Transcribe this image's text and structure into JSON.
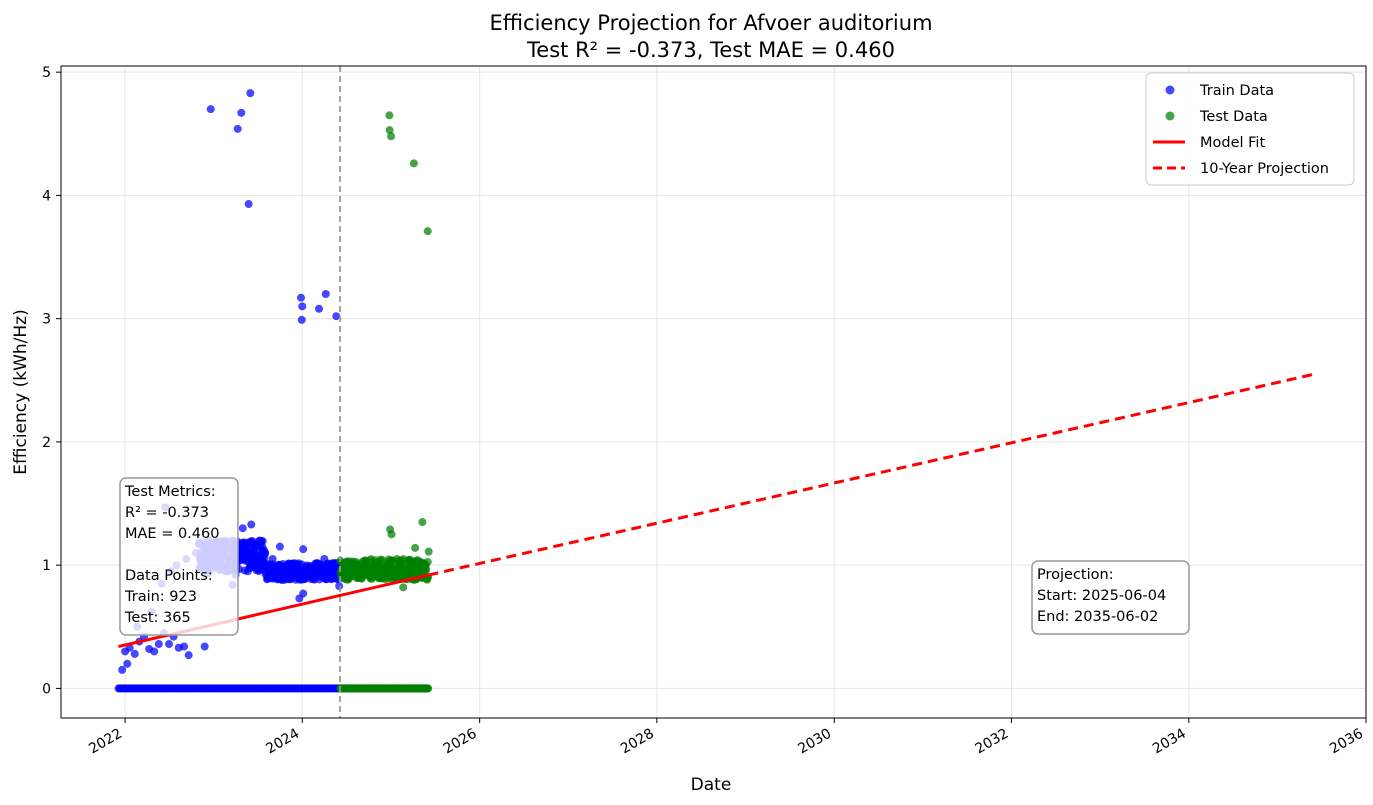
{
  "chart_data": {
    "type": "scatter",
    "title": "Efficiency Projection for Afvoer auditorium",
    "subtitle": "Test R² = -0.373, Test MAE = 0.460",
    "xlabel": "Date",
    "ylabel": "Efficiency (kWh/Hz)",
    "xlim": [
      "2021-04-12",
      "2036-01-01"
    ],
    "ylim": [
      -0.24,
      5.05
    ],
    "x_ticks": [
      "2022",
      "2024",
      "2026",
      "2028",
      "2030",
      "2032",
      "2034",
      "2036"
    ],
    "y_ticks": [
      "0",
      "1",
      "2",
      "3",
      "4",
      "5"
    ],
    "grid": true,
    "legend_position": "top-right",
    "legend": [
      {
        "label": "Train Data",
        "kind": "marker",
        "color": "#0000ff"
      },
      {
        "label": "Test Data",
        "kind": "marker",
        "color": "#008000"
      },
      {
        "label": "Model Fit",
        "kind": "solid-line",
        "color": "#ff0000"
      },
      {
        "label": "10-Year Projection",
        "kind": "dashed-line",
        "color": "#ff0000"
      }
    ],
    "split_date": "2024-06-05",
    "series": [
      {
        "name": "Train Data",
        "color": "#0000ff",
        "points": [
          [
            "2022-12-20",
            4.7
          ],
          [
            "2023-04-25",
            4.67
          ],
          [
            "2023-06-01",
            4.83
          ],
          [
            "2023-04-10",
            4.54
          ],
          [
            "2023-05-25",
            3.93
          ],
          [
            "2023-12-27",
            3.17
          ],
          [
            "2024-01-01",
            3.1
          ],
          [
            "2023-12-30",
            2.99
          ],
          [
            "2024-04-07",
            3.2
          ],
          [
            "2024-03-10",
            3.08
          ],
          [
            "2024-05-20",
            3.02
          ],
          [
            "2022-06-15",
            1.47
          ],
          [
            "2023-05-01",
            1.3
          ],
          [
            "2023-06-05",
            1.33
          ],
          [
            "2023-03-20",
            1.2
          ],
          [
            "2022-01-01",
            0.3
          ],
          [
            "2022-01-20",
            0.33
          ],
          [
            "2022-02-10",
            0.28
          ],
          [
            "2022-03-01",
            0.38
          ],
          [
            "2022-03-20",
            0.42
          ],
          [
            "2022-04-10",
            0.32
          ],
          [
            "2022-05-01",
            0.3
          ],
          [
            "2022-05-20",
            0.36
          ],
          [
            "2022-06-10",
            0.45
          ],
          [
            "2022-07-01",
            0.36
          ],
          [
            "2022-07-20",
            0.42
          ],
          [
            "2022-08-10",
            0.33
          ],
          [
            "2022-09-01",
            0.34
          ],
          [
            "2022-09-20",
            0.27
          ],
          [
            "2021-12-20",
            0.15
          ],
          [
            "2022-01-10",
            0.2
          ],
          [
            "2022-02-20",
            0.5
          ],
          [
            "2022-04-20",
            0.62
          ],
          [
            "2022-06-01",
            0.85
          ],
          [
            "2022-07-10",
            0.95
          ],
          [
            "2022-08-01",
            1.0
          ],
          [
            "2022-09-10",
            1.05
          ],
          [
            "2022-10-20",
            1.1
          ],
          [
            "2022-11-20",
            1.02
          ],
          [
            "2022-12-10",
            0.93
          ],
          [
            "2023-01-20",
            1.08
          ],
          [
            "2023-02-20",
            0.95
          ],
          [
            "2023-04-01",
            0.92
          ],
          [
            "2022-11-25",
            0.34
          ],
          [
            "2023-03-20",
            0.84
          ],
          [
            "2023-05-10",
            1.1
          ],
          [
            "2023-06-20",
            1.15
          ],
          [
            "2023-07-10",
            1.2
          ],
          [
            "2023-08-01",
            1.1
          ],
          [
            "2023-09-01",
            1.05
          ],
          [
            "2023-10-01",
            1.15
          ],
          [
            "2023-11-01",
            1.0
          ],
          [
            "2023-12-01",
            0.95
          ],
          [
            "2024-01-05",
            1.13
          ],
          [
            "2024-02-01",
            0.95
          ],
          [
            "2024-03-01",
            1.0
          ],
          [
            "2024-04-01",
            1.05
          ],
          [
            "2024-05-01",
            0.95
          ],
          [
            "2023-12-20",
            0.73
          ],
          [
            "2024-01-05",
            0.77
          ],
          [
            "2024-06-01",
            0.83
          ],
          [
            "2023-08-20",
            0.97
          ],
          [
            "2023-10-20",
            0.9
          ]
        ],
        "dense_bands": [
          {
            "x_start": "2021-12-05",
            "x_end": "2024-06-04",
            "y": 0.0
          },
          {
            "x_start": "2022-11-01",
            "x_end": "2023-08-01",
            "y_min": 0.95,
            "y_max": 1.2
          },
          {
            "x_start": "2023-08-01",
            "x_end": "2024-06-04",
            "y_min": 0.88,
            "y_max": 1.02
          }
        ]
      },
      {
        "name": "Test Data",
        "color": "#008000",
        "points": [
          [
            "2024-12-25",
            4.65
          ],
          [
            "2024-12-26",
            4.53
          ],
          [
            "2025-01-01",
            4.48
          ],
          [
            "2025-04-05",
            4.26
          ],
          [
            "2025-06-01",
            3.71
          ],
          [
            "2025-05-10",
            1.35
          ],
          [
            "2024-12-28",
            1.29
          ],
          [
            "2025-01-03",
            1.25
          ],
          [
            "2025-04-10",
            1.14
          ],
          [
            "2025-06-05",
            1.11
          ],
          [
            "2025-02-20",
            0.82
          ],
          [
            "2024-07-20",
            0.98
          ],
          [
            "2024-09-15",
            0.95
          ],
          [
            "2024-11-10",
            1.0
          ],
          [
            "2025-03-05",
            0.97
          ]
        ],
        "dense_bands": [
          {
            "x_start": "2024-06-06",
            "x_end": "2025-06-03",
            "y": 0.0
          },
          {
            "x_start": "2024-06-06",
            "x_end": "2025-06-03",
            "y_min": 0.88,
            "y_max": 1.05
          }
        ]
      }
    ],
    "model_fit": {
      "x": [
        "2021-12-05",
        "2025-06-04"
      ],
      "y": [
        0.34,
        0.92
      ],
      "color": "#ff0000",
      "style": "solid"
    },
    "projection": {
      "x": [
        "2025-06-04",
        "2035-06-02"
      ],
      "y": [
        0.92,
        2.55
      ],
      "color": "#ff0000",
      "style": "dashed"
    },
    "annotations": {
      "metrics_box": [
        "Test Metrics:",
        "R² = -0.373",
        "MAE = 0.460",
        "",
        "Data Points:",
        "Train: 923",
        "Test: 365"
      ],
      "projection_box": [
        "Projection:",
        "Start: 2025-06-04",
        "End: 2035-06-02"
      ]
    }
  }
}
